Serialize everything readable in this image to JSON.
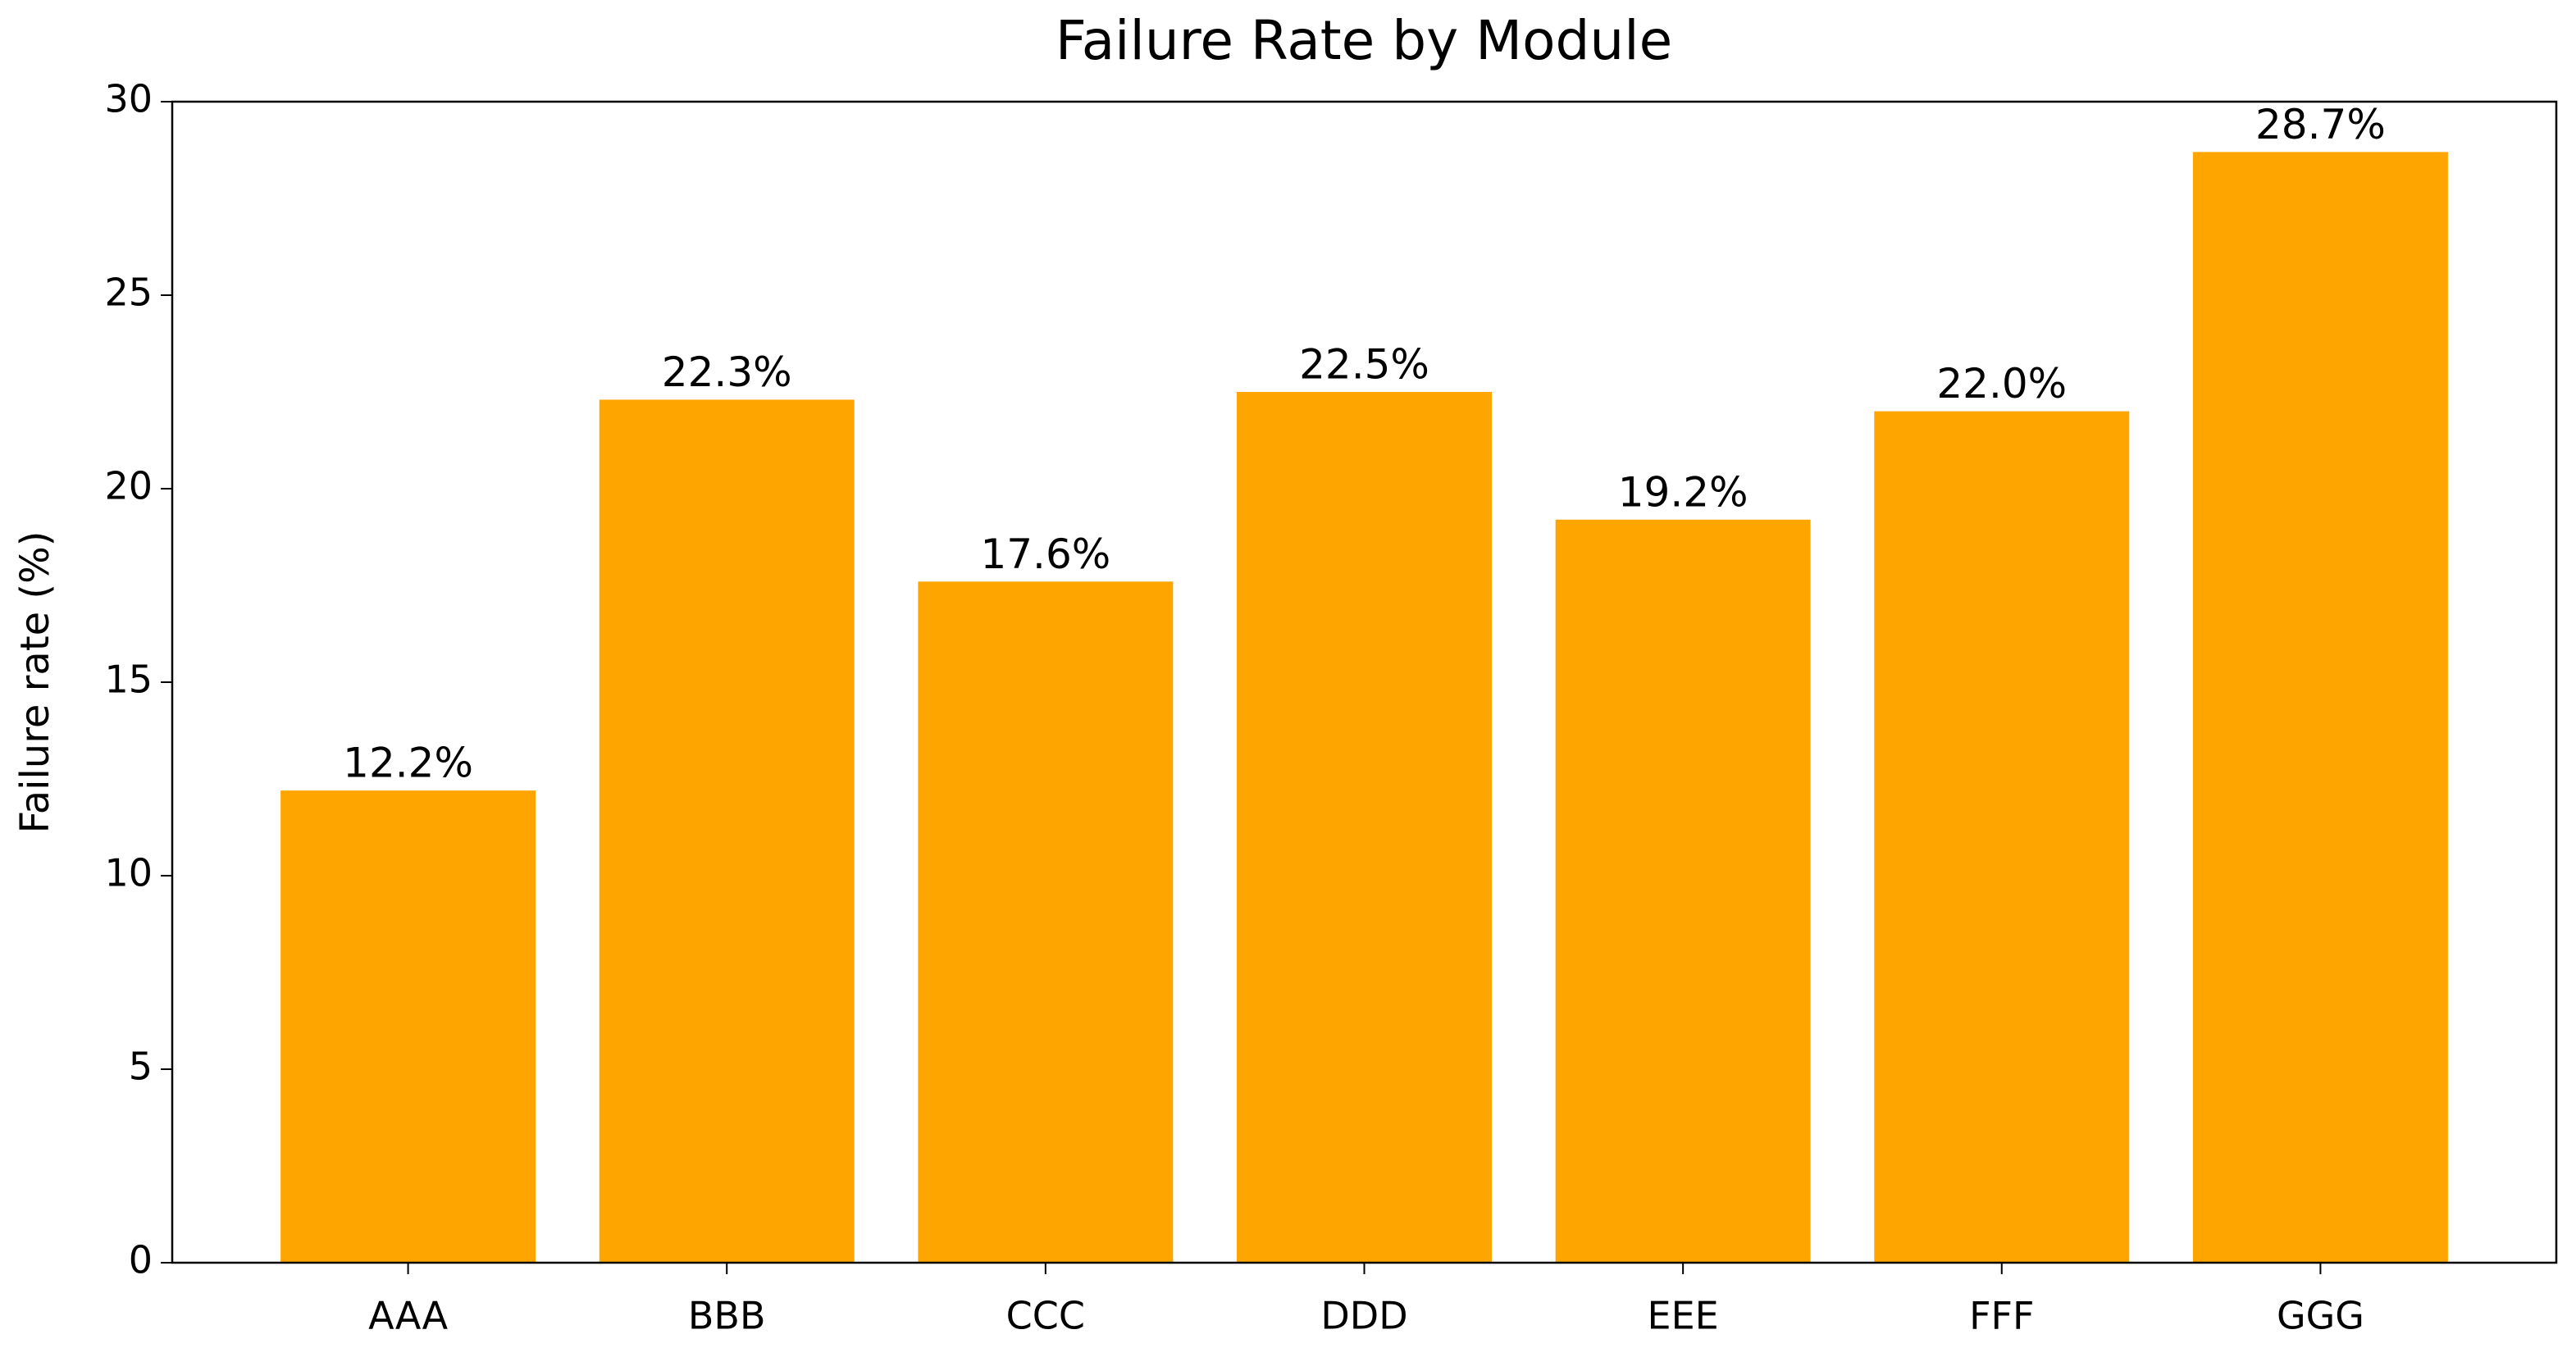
{
  "chart_data": {
    "type": "bar",
    "title": "Failure Rate by Module",
    "y_label": "Failure rate (%)",
    "categories": [
      "AAA",
      "BBB",
      "CCC",
      "DDD",
      "EEE",
      "FFF",
      "GGG"
    ],
    "values": [
      12.2,
      22.3,
      17.6,
      22.5,
      19.2,
      22.0,
      28.7
    ],
    "value_labels": [
      "12.2%",
      "22.3%",
      "17.6%",
      "22.5%",
      "19.2%",
      "22.0%",
      "28.7%"
    ],
    "color": "#ffa500",
    "ylim": [
      0,
      30
    ],
    "yticks": [
      0,
      5,
      10,
      15,
      20,
      25,
      30
    ],
    "grid": false
  }
}
